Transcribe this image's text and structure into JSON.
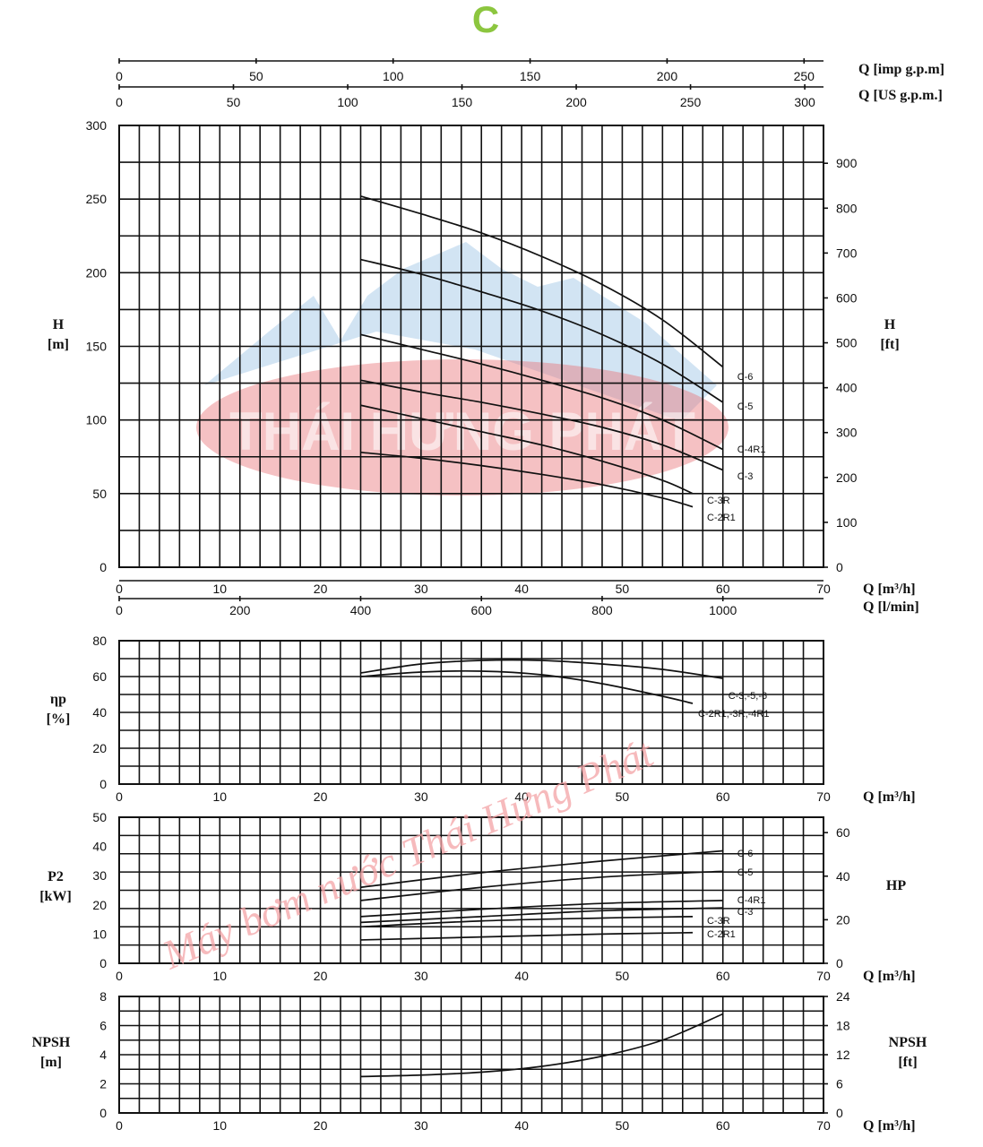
{
  "title": "C",
  "colors": {
    "title": "#8cc63f",
    "watermark_mountain": "#7fb2dc",
    "watermark_ellipse": "#e8767a",
    "watermark_text": "#f4a3a6",
    "grid": "#111111"
  },
  "watermark": {
    "brand": "THÁI HƯNG PHÁT",
    "slogan": "Máy bơm nước Thái Hưng Phát"
  },
  "chart_data": [
    {
      "type": "line",
      "name": "H-Q head curves",
      "title": "C",
      "xlabel": "Q [m³/h]",
      "x2label": "Q [l/min]",
      "x_top1_label": "Q [imp g.p.m]",
      "x_top2_label": "Q [US g.p.m.]",
      "ylabel": [
        "H",
        "[m]"
      ],
      "y2label": [
        "H",
        "[ft]"
      ],
      "xlim": [
        0,
        70
      ],
      "ylim": [
        0,
        300
      ],
      "x_ticks": [
        0,
        10,
        20,
        30,
        40,
        50,
        60,
        70
      ],
      "y_ticks": [
        0,
        50,
        100,
        150,
        200,
        250,
        300
      ],
      "x2_ticks": [
        0,
        200,
        400,
        600,
        800,
        1000
      ],
      "x_top1_ticks": [
        0,
        50,
        100,
        150,
        200,
        250
      ],
      "x_top2_ticks": [
        0,
        50,
        100,
        150,
        200,
        250,
        300
      ],
      "y2_ticks": [
        0,
        100,
        200,
        300,
        400,
        500,
        600,
        700,
        800,
        900
      ],
      "series": [
        {
          "name": "C-6",
          "x": [
            24,
            30,
            36,
            42,
            48,
            54,
            60
          ],
          "y": [
            252,
            240,
            227,
            211,
            192,
            168,
            136
          ]
        },
        {
          "name": "C-5",
          "x": [
            24,
            30,
            36,
            42,
            48,
            54,
            60
          ],
          "y": [
            209,
            199,
            187,
            174,
            158,
            138,
            112
          ]
        },
        {
          "name": "C-4R1",
          "x": [
            24,
            30,
            36,
            42,
            48,
            54,
            60
          ],
          "y": [
            158,
            148,
            138,
            127,
            115,
            100,
            80
          ]
        },
        {
          "name": "C-3",
          "x": [
            24,
            30,
            36,
            42,
            48,
            54,
            60
          ],
          "y": [
            127,
            119,
            112,
            104,
            95,
            83,
            66
          ]
        },
        {
          "name": "C-3R",
          "x": [
            24,
            30,
            36,
            42,
            48,
            54,
            57
          ],
          "y": [
            110,
            101,
            92,
            83,
            72,
            59,
            50
          ]
        },
        {
          "name": "C-2R1",
          "x": [
            24,
            30,
            36,
            42,
            48,
            54,
            57
          ],
          "y": [
            78,
            74,
            69,
            63,
            56,
            47,
            41
          ]
        }
      ]
    },
    {
      "type": "line",
      "name": "Efficiency",
      "xlabel": "Q [m³/h]",
      "ylabel": [
        "ηp",
        "[%]"
      ],
      "xlim": [
        0,
        70
      ],
      "ylim": [
        0,
        80
      ],
      "x_ticks": [
        0,
        10,
        20,
        30,
        40,
        50,
        60,
        70
      ],
      "y_ticks": [
        0,
        20,
        40,
        60,
        80
      ],
      "series": [
        {
          "name": "C-3,-5,-6",
          "x": [
            24,
            30,
            36,
            42,
            48,
            54,
            60
          ],
          "y": [
            62,
            67,
            69,
            69,
            67,
            64,
            59
          ]
        },
        {
          "name": "C-2R1,-3R,-4R1",
          "x": [
            24,
            30,
            36,
            42,
            48,
            54,
            57
          ],
          "y": [
            60,
            62.5,
            63,
            61,
            56,
            49,
            45
          ]
        }
      ]
    },
    {
      "type": "line",
      "name": "Power P2",
      "xlabel": "Q [m³/h]",
      "ylabel": [
        "P2",
        "[kW]"
      ],
      "y2label": [
        "HP"
      ],
      "xlim": [
        0,
        70
      ],
      "ylim": [
        0,
        50
      ],
      "x_ticks": [
        0,
        10,
        20,
        30,
        40,
        50,
        60,
        70
      ],
      "y_ticks": [
        0,
        10,
        20,
        30,
        40,
        50
      ],
      "y2_ticks": [
        0,
        20,
        40,
        60
      ],
      "series": [
        {
          "name": "C-6",
          "x": [
            24,
            36,
            48,
            60
          ],
          "y": [
            26,
            31,
            35,
            38.5
          ]
        },
        {
          "name": "C-5",
          "x": [
            24,
            36,
            48,
            60
          ],
          "y": [
            21.5,
            26,
            29.5,
            31.5
          ]
        },
        {
          "name": "C-4R1",
          "x": [
            24,
            36,
            48,
            60
          ],
          "y": [
            16,
            18.5,
            20.5,
            21.5
          ]
        },
        {
          "name": "C-3",
          "x": [
            24,
            36,
            48,
            60
          ],
          "y": [
            14,
            16,
            18,
            19
          ]
        },
        {
          "name": "C-3R",
          "x": [
            24,
            36,
            48,
            57
          ],
          "y": [
            12.5,
            14.5,
            15.5,
            16
          ]
        },
        {
          "name": "C-2R1",
          "x": [
            24,
            36,
            48,
            57
          ],
          "y": [
            8,
            9,
            10,
            10.5
          ]
        }
      ]
    },
    {
      "type": "line",
      "name": "NPSH",
      "xlabel": "Q [m³/h]",
      "ylabel": [
        "NPSH",
        "[m]"
      ],
      "y2label": [
        "NPSH",
        "[ft]"
      ],
      "xlim": [
        0,
        70
      ],
      "ylim": [
        0,
        8
      ],
      "x_ticks": [
        0,
        10,
        20,
        30,
        40,
        50,
        60,
        70
      ],
      "y_ticks": [
        0,
        2,
        4,
        6,
        8
      ],
      "y2_ticks": [
        0,
        6,
        12,
        18,
        24
      ],
      "series": [
        {
          "name": "NPSH",
          "x": [
            24,
            30,
            36,
            42,
            48,
            54,
            60
          ],
          "y": [
            2.5,
            2.6,
            2.8,
            3.2,
            3.9,
            5,
            6.8
          ]
        }
      ]
    }
  ]
}
